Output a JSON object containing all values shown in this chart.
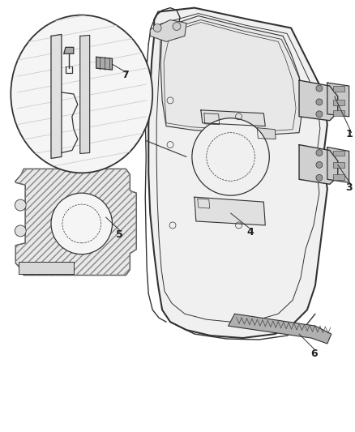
{
  "background_color": "#ffffff",
  "line_color": "#333333",
  "label_color": "#222222",
  "figsize": [
    4.38,
    5.33
  ],
  "dpi": 100,
  "labels": [
    "1",
    "3",
    "4",
    "5",
    "6",
    "7"
  ]
}
